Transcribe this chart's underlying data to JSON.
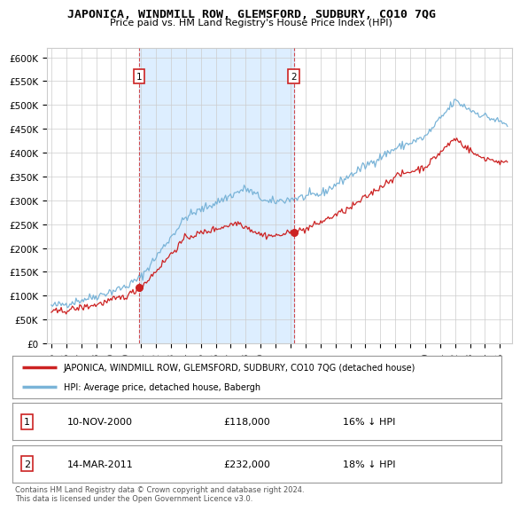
{
  "title": "JAPONICA, WINDMILL ROW, GLEMSFORD, SUDBURY, CO10 7QG",
  "subtitle": "Price paid vs. HM Land Registry's House Price Index (HPI)",
  "ylim": [
    0,
    620000
  ],
  "xlim_start": 1994.7,
  "xlim_end": 2025.8,
  "hpi_color": "#7ab4d8",
  "price_color": "#cc2222",
  "vline_color": "#cc2222",
  "shade_color": "#ddeeff",
  "purchase1_year": 2000.87,
  "purchase1_price": 118000,
  "purchase1_label": "1",
  "purchase2_year": 2011.21,
  "purchase2_price": 232000,
  "purchase2_label": "2",
  "legend_line1": "JAPONICA, WINDMILL ROW, GLEMSFORD, SUDBURY, CO10 7QG (detached house)",
  "legend_line2": "HPI: Average price, detached house, Babergh",
  "table_row1_num": "1",
  "table_row1_date": "10-NOV-2000",
  "table_row1_price": "£118,000",
  "table_row1_hpi": "16% ↓ HPI",
  "table_row2_num": "2",
  "table_row2_date": "14-MAR-2011",
  "table_row2_price": "£232,000",
  "table_row2_hpi": "18% ↓ HPI",
  "footer": "Contains HM Land Registry data © Crown copyright and database right 2024.\nThis data is licensed under the Open Government Licence v3.0.",
  "background_color": "#ffffff",
  "plot_bg_color": "#ffffff",
  "grid_color": "#cccccc"
}
